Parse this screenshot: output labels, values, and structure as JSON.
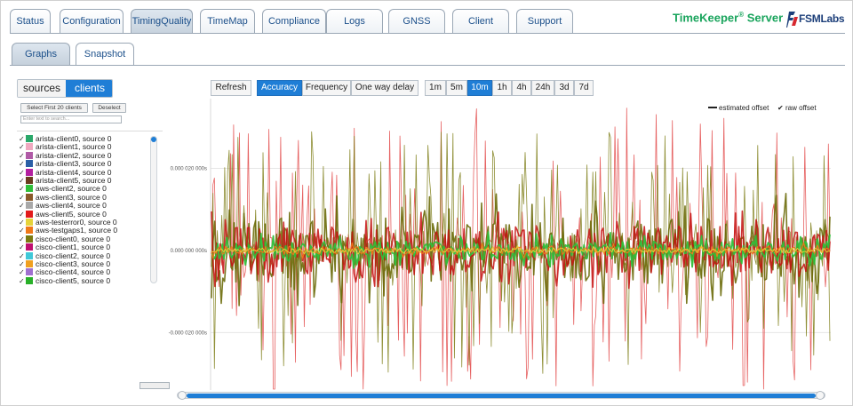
{
  "top_tabs": [
    {
      "label": "Status"
    },
    {
      "label": "Configuration"
    },
    {
      "label": "TimingQuality",
      "active": true
    },
    {
      "label": "TimeMap"
    },
    {
      "label": "Compliance"
    },
    {
      "label": "Logs"
    },
    {
      "label": "GNSS"
    },
    {
      "label": "Client"
    },
    {
      "label": "Support"
    }
  ],
  "brand": {
    "name": "TimeKeeper",
    "reg": "®",
    "suffix": "Server",
    "logo_text": "FSM",
    "logo_text2": "Labs",
    "color": "#19a45c"
  },
  "sub_tabs": [
    {
      "label": "Graphs",
      "active": true
    },
    {
      "label": "Snapshot"
    }
  ],
  "left_panel": {
    "segment": {
      "sources": "sources",
      "clients": "clients",
      "selected": "clients"
    },
    "select_first_label": "Select First 20 clients",
    "deselect_label": "Deselect",
    "search_placeholder": "Enter text to search...",
    "tiny_button": "",
    "clients": [
      {
        "label": "arista-client0, source 0",
        "color": "#2aa86a",
        "checked": true
      },
      {
        "label": "arista-client1, source 0",
        "color": "#f0a9c0",
        "checked": true
      },
      {
        "label": "arista-client2, source 0",
        "color": "#b05aa6",
        "checked": true
      },
      {
        "label": "arista-client3, source 0",
        "color": "#2b5fa6",
        "checked": true
      },
      {
        "label": "arista-client4, source 0",
        "color": "#b31fa0",
        "checked": true
      },
      {
        "label": "arista-client5, source 0",
        "color": "#6a3c1e",
        "checked": true
      },
      {
        "label": "aws-client2, source 0",
        "color": "#2fbf3a",
        "checked": true
      },
      {
        "label": "aws-client3, source 0",
        "color": "#8a5a2a",
        "checked": true
      },
      {
        "label": "aws-client4, source 0",
        "color": "#a8a8a8",
        "checked": true
      },
      {
        "label": "aws-client5, source 0",
        "color": "#e21b1b",
        "checked": true
      },
      {
        "label": "aws-testerror0, source 0",
        "color": "#e6d33a",
        "checked": true
      },
      {
        "label": "aws-testgaps1, source 0",
        "color": "#f07818",
        "checked": true
      },
      {
        "label": "cisco-client0, source 0",
        "color": "#7a7a10",
        "checked": true
      },
      {
        "label": "cisco-client1, source 0",
        "color": "#c01070",
        "checked": true
      },
      {
        "label": "cisco-client2, source 0",
        "color": "#40c8d8",
        "checked": true
      },
      {
        "label": "cisco-client3, source 0",
        "color": "#f0a020",
        "checked": true
      },
      {
        "label": "cisco-client4, source 0",
        "color": "#a070d0",
        "checked": true
      },
      {
        "label": "cisco-client5, source 0",
        "color": "#28b028",
        "checked": true
      }
    ]
  },
  "toolbar": {
    "refresh": "Refresh",
    "modes": [
      {
        "label": "Accuracy",
        "active": true
      },
      {
        "label": "Frequency"
      },
      {
        "label": "One way delay"
      }
    ],
    "ranges": [
      {
        "label": "1m"
      },
      {
        "label": "5m"
      },
      {
        "label": "10m",
        "active": true
      },
      {
        "label": "1h"
      },
      {
        "label": "4h"
      },
      {
        "label": "24h"
      },
      {
        "label": "3d"
      },
      {
        "label": "7d"
      }
    ]
  },
  "chart_data": {
    "type": "line",
    "title": "",
    "xlabel": "",
    "ylabel": "",
    "y_ticks": [
      "0.000 020 000s",
      "0.000 000 000s",
      "-0.000 020 000s"
    ],
    "y_tick_values": [
      2e-05,
      0,
      -2e-05
    ],
    "ylim": [
      -3.4e-05,
      3.7e-05
    ],
    "grid": true,
    "legend": {
      "placement": "top-right",
      "entries": [
        {
          "label": "estimated offset",
          "marker": "line"
        },
        {
          "label": "raw offset",
          "marker": "check"
        }
      ]
    },
    "series_colors": [
      "#e03a3a",
      "#7a7a10",
      "#2fbf3a",
      "#f07818",
      "#e6d33a"
    ],
    "note": ""
  }
}
